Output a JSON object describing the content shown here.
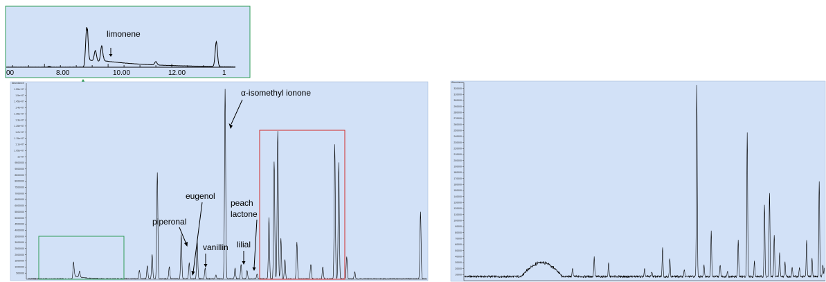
{
  "chart_data": [
    {
      "type": "line",
      "panel": "inset",
      "title": "",
      "x_ticks": [
        "00",
        "8.00",
        "10.00",
        "12.00",
        "1"
      ],
      "annotations": [
        {
          "text": "limonene",
          "x": 9.7
        }
      ],
      "peaks": [
        {
          "x": 9.33,
          "y": 0.94
        },
        {
          "x": 9.6,
          "y": 0.25
        },
        {
          "x": 9.8,
          "y": 0.38
        },
        {
          "x": 11.5,
          "y": 0.08
        },
        {
          "x": 13.4,
          "y": 0.58
        }
      ],
      "colors": {
        "frame": "#2e9b57",
        "background": "#d2e1f7"
      }
    },
    {
      "type": "line",
      "panel": "left",
      "ylabel": "Abundance",
      "y_ticks": [
        "1.55e+07",
        "1.5e+07",
        "1.45e+07",
        "1.4e+07",
        "1.35e+07",
        "1.3e+07",
        "1.25e+07",
        "1.2e+07",
        "1.15e+07",
        "1.1e+07",
        "1.05e+07",
        "1e+07",
        "9500000",
        "9000000",
        "8500000",
        "8000000",
        "7500000",
        "7000000",
        "6500000",
        "6000000",
        "5500000",
        "5000000",
        "4500000",
        "4000000",
        "3500000",
        "3000000",
        "2500000",
        "2000000",
        "1500000",
        "1000000",
        "500000"
      ],
      "ylim": [
        0,
        16000000
      ],
      "xlim": [
        0,
        100
      ],
      "annotations": [
        {
          "text": "α-isomethyl ionone"
        },
        {
          "text": "eugenol"
        },
        {
          "text": "piperonal"
        },
        {
          "text": "vanillin"
        },
        {
          "text": "peach"
        },
        {
          "text": "lactone"
        },
        {
          "text": "lilial"
        }
      ],
      "peaks": [
        {
          "x": 11.5,
          "y": 1400000
        },
        {
          "x": 13.0,
          "y": 500000
        },
        {
          "x": 28.0,
          "y": 700000
        },
        {
          "x": 30.0,
          "y": 1100000
        },
        {
          "x": 31.2,
          "y": 2000000
        },
        {
          "x": 32.5,
          "y": 8700000
        },
        {
          "x": 35.5,
          "y": 1000000
        },
        {
          "x": 38.5,
          "y": 3600000
        },
        {
          "x": 40.5,
          "y": 1300000
        },
        {
          "x": 42.5,
          "y": 3200000
        },
        {
          "x": 44.5,
          "y": 900000
        },
        {
          "x": 47.2,
          "y": 300000
        },
        {
          "x": 49.5,
          "y": 15500000
        },
        {
          "x": 52.0,
          "y": 900000
        },
        {
          "x": 53.5,
          "y": 1200000
        },
        {
          "x": 55.0,
          "y": 700000
        },
        {
          "x": 57.5,
          "y": 400000
        },
        {
          "x": 60.5,
          "y": 5000000
        },
        {
          "x": 61.8,
          "y": 9600000
        },
        {
          "x": 62.7,
          "y": 12100000
        },
        {
          "x": 63.5,
          "y": 3300000
        },
        {
          "x": 64.5,
          "y": 1600000
        },
        {
          "x": 67.5,
          "y": 3000000
        },
        {
          "x": 71.0,
          "y": 1200000
        },
        {
          "x": 74.0,
          "y": 1000000
        },
        {
          "x": 77.0,
          "y": 11000000
        },
        {
          "x": 78.0,
          "y": 9500000
        },
        {
          "x": 80.0,
          "y": 1800000
        },
        {
          "x": 82.0,
          "y": 600000
        },
        {
          "x": 98.5,
          "y": 5500000
        }
      ],
      "colors": {
        "background": "#d2e1f7",
        "zoom_box_left": "#2e9b57",
        "zoom_box_right": "#d22a2a"
      }
    },
    {
      "type": "line",
      "panel": "right",
      "ylabel": "Abundance",
      "y_ticks": [
        "320000",
        "310000",
        "300000",
        "290000",
        "280000",
        "270000",
        "260000",
        "250000",
        "240000",
        "230000",
        "220000",
        "210000",
        "200000",
        "190000",
        "180000",
        "170000",
        "160000",
        "150000",
        "140000",
        "130000",
        "120000",
        "110000",
        "100000",
        "90000",
        "80000",
        "70000",
        "60000",
        "50000",
        "40000",
        "30000",
        "20000",
        "10000"
      ],
      "ylim": [
        0,
        330000
      ],
      "xlim": [
        0,
        100
      ],
      "peaks": [
        {
          "x": 30.0,
          "y": 15000
        },
        {
          "x": 36.0,
          "y": 32000
        },
        {
          "x": 40.0,
          "y": 22000
        },
        {
          "x": 50.0,
          "y": 12000
        },
        {
          "x": 52.0,
          "y": 8000
        },
        {
          "x": 55.0,
          "y": 50000
        },
        {
          "x": 57.0,
          "y": 30000
        },
        {
          "x": 61.0,
          "y": 12000
        },
        {
          "x": 64.5,
          "y": 320000
        },
        {
          "x": 66.5,
          "y": 20000
        },
        {
          "x": 68.5,
          "y": 75000
        },
        {
          "x": 71.0,
          "y": 20000
        },
        {
          "x": 73.0,
          "y": 10000
        },
        {
          "x": 76.0,
          "y": 60000
        },
        {
          "x": 78.5,
          "y": 240000
        },
        {
          "x": 80.5,
          "y": 25000
        },
        {
          "x": 83.3,
          "y": 120000
        },
        {
          "x": 84.7,
          "y": 140000
        },
        {
          "x": 86.0,
          "y": 70000
        },
        {
          "x": 87.5,
          "y": 40000
        },
        {
          "x": 89.0,
          "y": 25000
        },
        {
          "x": 91.0,
          "y": 15000
        },
        {
          "x": 93.0,
          "y": 15000
        },
        {
          "x": 95.0,
          "y": 60000
        },
        {
          "x": 96.5,
          "y": 30000
        },
        {
          "x": 98.5,
          "y": 160000
        },
        {
          "x": 99.5,
          "y": 20000
        },
        {
          "x": 100.0,
          "y": 15000
        }
      ],
      "hump": {
        "start": 16.0,
        "peak": 21.5,
        "end": 27.0,
        "height": 22000
      },
      "colors": {
        "background": "#d2e1f7"
      }
    }
  ]
}
